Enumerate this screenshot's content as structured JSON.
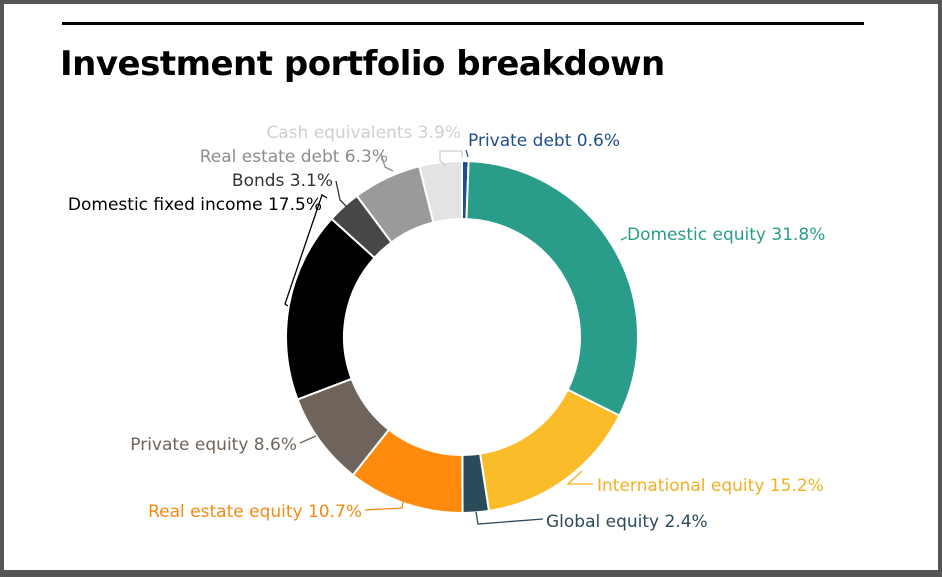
{
  "page": {
    "title": "Investment portfolio breakdown"
  },
  "chart_data": {
    "type": "pie",
    "title": "Investment portfolio breakdown",
    "donut": true,
    "unit": "%",
    "slices": [
      {
        "label": "Private debt",
        "value": 0.6,
        "display": "Private debt 0.6%",
        "color": "#1f4e8c",
        "label_color": "#1f4e8c"
      },
      {
        "label": "Domestic equity",
        "value": 31.8,
        "display": "Domestic equity 31.8%",
        "color": "#2a9d8a",
        "label_color": "#2a9d8a"
      },
      {
        "label": "International equity",
        "value": 15.2,
        "display": "International equity 15.2%",
        "color": "#fbbc2a",
        "label_color": "#f2b022"
      },
      {
        "label": "Global equity",
        "value": 2.4,
        "display": "Global equity 2.4%",
        "color": "#2c4b5a",
        "label_color": "#2c4b5a"
      },
      {
        "label": "Real estate equity",
        "value": 10.7,
        "display": "Real estate equity 10.7%",
        "color": "#ff8a0e",
        "label_color": "#f28a12"
      },
      {
        "label": "Private equity",
        "value": 8.6,
        "display": "Private equity 8.6%",
        "color": "#6f645b",
        "label_color": "#6f645b"
      },
      {
        "label": "Domestic fixed income",
        "value": 17.5,
        "display": "Domestic fixed income 17.5%",
        "color": "#000000",
        "label_color": "#000000"
      },
      {
        "label": "Bonds",
        "value": 3.1,
        "display": "Bonds 3.1%",
        "color": "#474747",
        "label_color": "#333333"
      },
      {
        "label": "Real estate debt",
        "value": 6.3,
        "display": "Real estate debt 6.3%",
        "color": "#9a9a9a",
        "label_color": "#8d8d8d"
      },
      {
        "label": "Cash equivalents",
        "value": 3.9,
        "display": "Cash equivalents 3.9%",
        "color": "#e3e3e3",
        "label_color": "#cfcfcf"
      }
    ]
  }
}
